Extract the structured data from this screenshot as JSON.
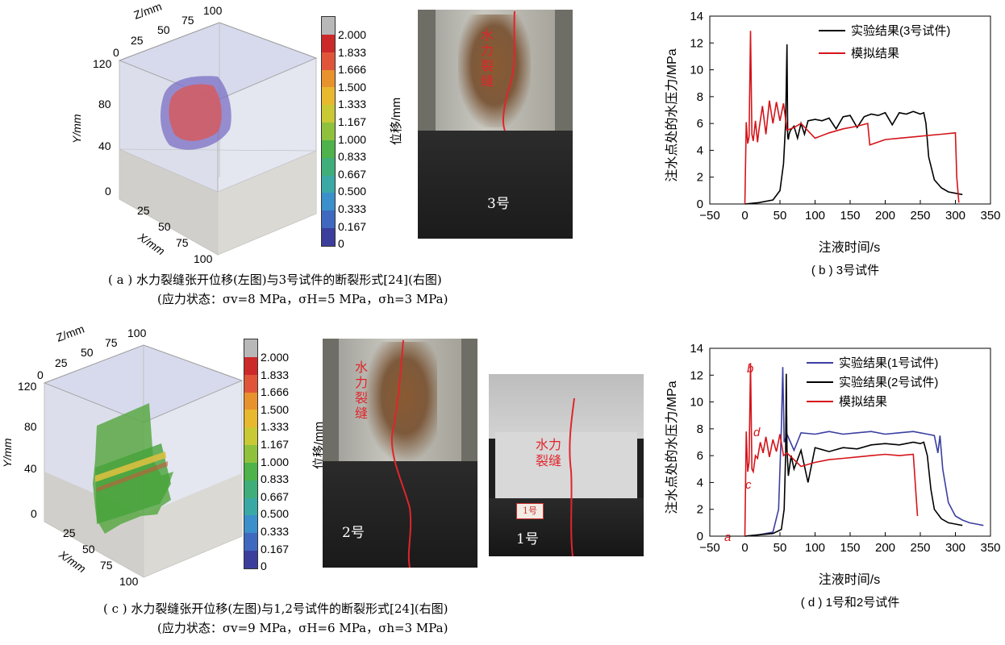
{
  "panel_a": {
    "cube_axes": {
      "z_label": "Z/mm",
      "z_ticks": [
        "25",
        "50",
        "75",
        "100"
      ],
      "y_label": "Y/mm",
      "y_ticks": [
        "0",
        "40",
        "80",
        "120"
      ],
      "x_label": "X/mm",
      "x_ticks": [
        "25",
        "50",
        "75",
        "100"
      ],
      "origin_zero": "0"
    },
    "colorbar": {
      "label": "位移/mm",
      "ticks": [
        "2.000",
        "1.833",
        "1.666",
        "1.500",
        "1.333",
        "1.167",
        "1.000",
        "0.833",
        "0.667",
        "0.500",
        "0.333",
        "0.167",
        "0"
      ],
      "colors": [
        "#b8b8b8",
        "#cc2a2a",
        "#e0553a",
        "#e8922e",
        "#e8b82e",
        "#c9c835",
        "#8fc13d",
        "#4db34a",
        "#3fae7a",
        "#3aa9a6",
        "#3b8fcb",
        "#3e69bf",
        "#3c3e9c"
      ]
    },
    "photo_label": "3号",
    "crack_label": "水力裂缝",
    "caption_line1": "( a ) 水力裂缝张开位移(左图)与3号试件的断裂形式[24](右图)",
    "caption_line2": "(应力状态：σv=8 MPa，σH=5 MPa，σh=3 MPa)"
  },
  "panel_b": {
    "caption": "( b ) 3号试件",
    "chart_data": {
      "type": "line",
      "xlabel": "注液时间/s",
      "ylabel": "注水点处的水压力/MPa",
      "xlim": [
        -50,
        350
      ],
      "ylim": [
        0,
        14
      ],
      "xticks": [
        -50,
        0,
        50,
        100,
        150,
        200,
        250,
        300,
        350
      ],
      "yticks": [
        0,
        2,
        4,
        6,
        8,
        10,
        12,
        14
      ],
      "legend": "top-right",
      "series": [
        {
          "name": "实验结果(3号试件)",
          "color": "#000000",
          "x": [
            0,
            20,
            40,
            50,
            55,
            58,
            60,
            61,
            62,
            63,
            65,
            70,
            75,
            80,
            85,
            90,
            100,
            110,
            120,
            130,
            140,
            150,
            160,
            170,
            180,
            190,
            200,
            210,
            220,
            230,
            240,
            250,
            255,
            258,
            262,
            270,
            280,
            290,
            300,
            310
          ],
          "y": [
            0,
            0.1,
            0.3,
            1.0,
            3.0,
            6.0,
            11.9,
            5.0,
            4.8,
            5.2,
            5.5,
            5.8,
            4.9,
            6.0,
            5.2,
            6.2,
            6.3,
            6.2,
            6.4,
            5.6,
            6.5,
            6.6,
            5.7,
            6.5,
            6.7,
            6.6,
            6.8,
            5.9,
            6.8,
            6.7,
            6.9,
            6.7,
            6.8,
            6.0,
            3.5,
            1.8,
            1.2,
            0.9,
            0.8,
            0.7
          ]
        },
        {
          "name": "模拟结果",
          "color": "#d4141a",
          "x": [
            0,
            2,
            4,
            6,
            8,
            10,
            12,
            15,
            18,
            20,
            25,
            30,
            35,
            40,
            45,
            50,
            55,
            60,
            70,
            80,
            100,
            120,
            140,
            160,
            175,
            178,
            200,
            220,
            240,
            260,
            280,
            300,
            302,
            305
          ],
          "y": [
            0,
            6.1,
            4.5,
            5.0,
            12.9,
            5.2,
            4.7,
            6.2,
            4.6,
            5.5,
            7.3,
            5.2,
            7.7,
            6.0,
            7.6,
            6.2,
            7.5,
            5.5,
            5.7,
            6.0,
            4.9,
            5.3,
            5.6,
            5.8,
            6.0,
            4.4,
            4.8,
            4.9,
            5.0,
            5.1,
            5.2,
            5.3,
            2.0,
            0.1
          ]
        }
      ]
    }
  },
  "panel_c": {
    "cube_axes": {
      "z_label": "Z/mm",
      "z_ticks": [
        "25",
        "50",
        "75",
        "100"
      ],
      "y_label": "Y/mm",
      "y_ticks": [
        "0",
        "40",
        "80",
        "120"
      ],
      "x_label": "X/mm",
      "x_ticks": [
        "25",
        "50",
        "75",
        "100"
      ],
      "origin_zero": "0"
    },
    "colorbar": {
      "label": "位移/mm",
      "ticks": [
        "2.000",
        "1.833",
        "1.666",
        "1.500",
        "1.333",
        "1.167",
        "1.000",
        "0.833",
        "0.667",
        "0.500",
        "0.333",
        "0.167",
        "0"
      ]
    },
    "photo2_label": "2号",
    "photo1_label": "1号",
    "photo1_tag": "1号",
    "crack_label": "水力裂缝",
    "caption_line1": "( c ) 水力裂缝张开位移(左图)与1,2号试件的断裂形式[24](右图)",
    "caption_line2": "(应力状态：σv=9 MPa，σH=6 MPa，σh=3 MPa)"
  },
  "panel_d": {
    "caption": "( d ) 1号和2号试件",
    "annotations": [
      "a",
      "b",
      "c",
      "d"
    ],
    "chart_data": {
      "type": "line",
      "xlabel": "注液时间/s",
      "ylabel": "注水点处的水压力/MPa",
      "xlim": [
        -50,
        350
      ],
      "ylim": [
        0,
        14
      ],
      "xticks": [
        -50,
        0,
        50,
        100,
        150,
        200,
        250,
        300,
        350
      ],
      "yticks": [
        0,
        2,
        4,
        6,
        8,
        10,
        12,
        14
      ],
      "legend": "top-right",
      "series": [
        {
          "name": "实验结果(1号试件)",
          "color": "#3b3fa0",
          "x": [
            0,
            20,
            40,
            48,
            52,
            54,
            56,
            60,
            70,
            80,
            100,
            120,
            140,
            160,
            180,
            200,
            220,
            240,
            260,
            270,
            275,
            278,
            282,
            290,
            300,
            310,
            320,
            330,
            340
          ],
          "y": [
            0,
            0.1,
            0.3,
            2.0,
            8.0,
            12.6,
            7.0,
            7.6,
            6.4,
            7.7,
            7.6,
            7.8,
            7.6,
            7.7,
            7.8,
            7.6,
            7.7,
            7.8,
            7.6,
            7.5,
            6.2,
            7.5,
            5.0,
            2.5,
            1.5,
            1.2,
            1.0,
            0.9,
            0.8
          ]
        },
        {
          "name": "实验结果(2号试件)",
          "color": "#000000",
          "x": [
            0,
            20,
            40,
            52,
            56,
            58,
            59,
            60,
            62,
            66,
            70,
            80,
            90,
            100,
            120,
            140,
            160,
            180,
            200,
            220,
            240,
            250,
            255,
            260,
            265,
            270,
            280,
            290,
            300,
            310
          ],
          "y": [
            0,
            0.1,
            0.2,
            0.5,
            2.0,
            6.0,
            12.1,
            6.5,
            4.5,
            6.0,
            5.0,
            6.4,
            4.0,
            6.6,
            6.3,
            6.6,
            6.5,
            6.8,
            6.9,
            6.8,
            7.0,
            6.9,
            7.0,
            6.0,
            3.5,
            2.0,
            1.3,
            1.0,
            0.9,
            0.8
          ]
        },
        {
          "name": "模拟结果",
          "color": "#d4141a",
          "x": [
            0,
            2,
            4,
            6,
            8,
            10,
            12,
            15,
            18,
            22,
            26,
            30,
            35,
            40,
            45,
            50,
            55,
            60,
            80,
            100,
            120,
            140,
            160,
            180,
            200,
            220,
            240,
            244,
            246
          ],
          "y": [
            0,
            7.8,
            4.8,
            5.5,
            12.9,
            5.0,
            4.8,
            6.0,
            5.8,
            7.0,
            6.2,
            7.4,
            5.9,
            7.2,
            6.3,
            7.6,
            6.0,
            6.2,
            5.2,
            5.5,
            5.7,
            5.8,
            5.9,
            6.0,
            6.1,
            6.0,
            6.1,
            3.0,
            1.5
          ]
        }
      ]
    }
  }
}
